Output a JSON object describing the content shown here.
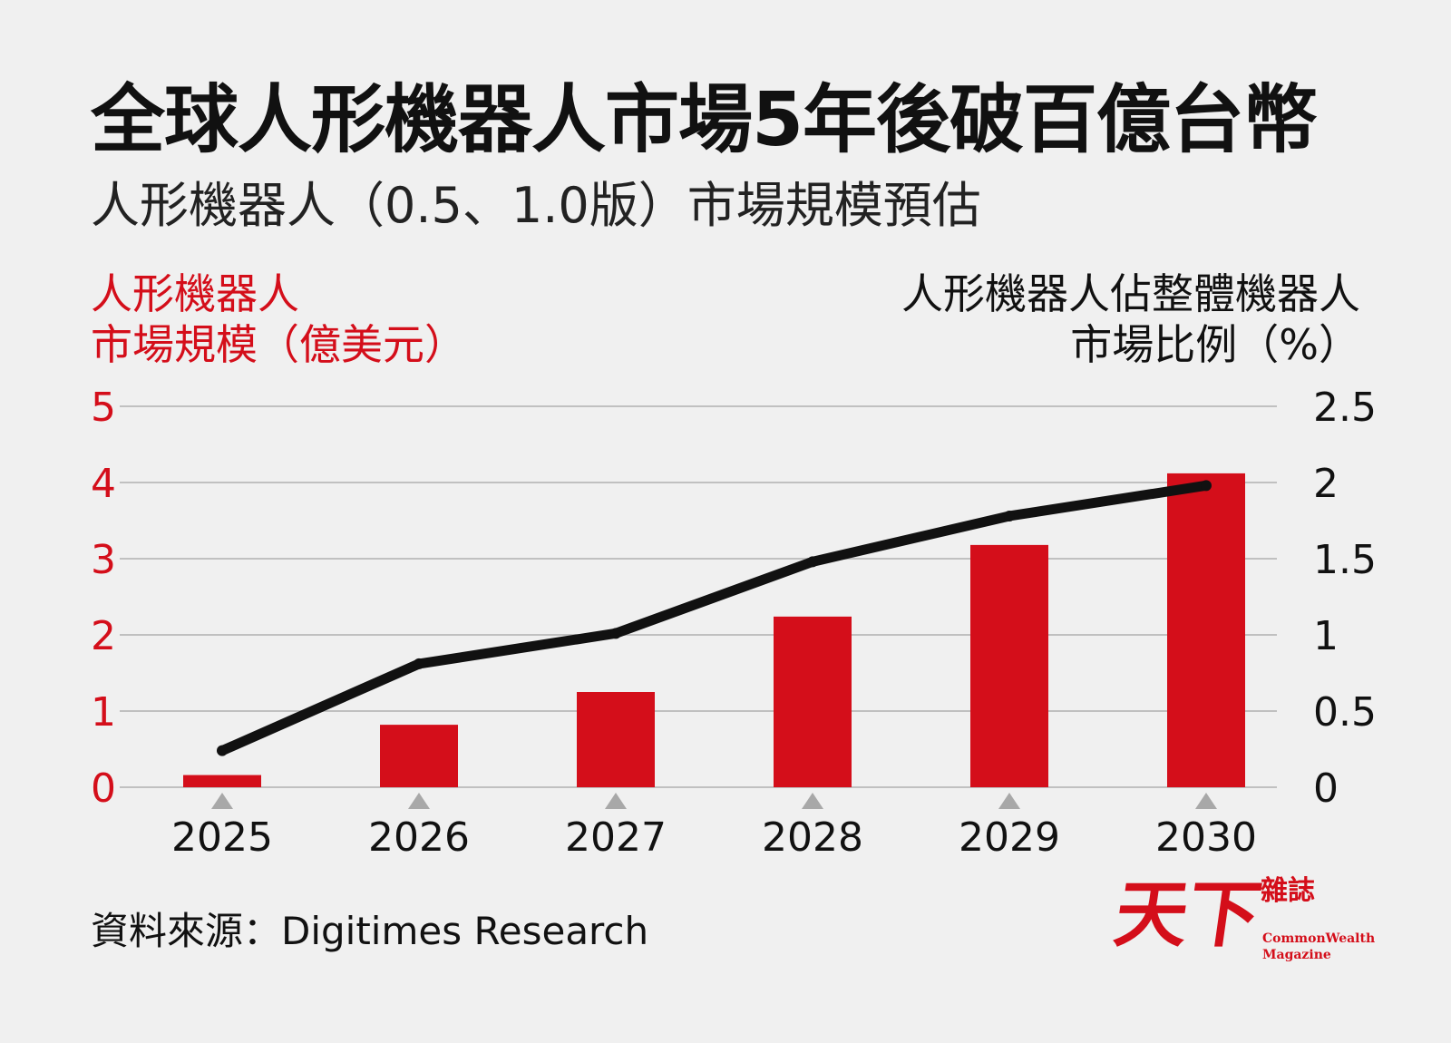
{
  "title": "全球人形機器人市場5年後破百億台幣",
  "subtitle": "人形機器人（0.5、1.0版）市場規模預估",
  "colors": {
    "bar": "#d40e1a",
    "line": "#111111",
    "left_axis": "#d40e1a",
    "grid": "#c0c0c0",
    "marker": "#a8a8a8"
  },
  "chart_data": {
    "type": "bar",
    "categories": [
      "2025",
      "2026",
      "2027",
      "2028",
      "2029",
      "2030"
    ],
    "series": [
      {
        "type": "bar",
        "axis": "left",
        "values": [
          0.16,
          0.82,
          1.25,
          2.24,
          3.18,
          4.12
        ]
      },
      {
        "type": "line",
        "axis": "right",
        "values": [
          0.24,
          0.81,
          1.01,
          1.48,
          1.78,
          1.98
        ]
      }
    ],
    "ylabel_left": [
      "人形機器人",
      "市場規模（億美元）"
    ],
    "ylabel_right": [
      "人形機器人佔整體機器人",
      "市場比例（%）"
    ],
    "ylim_left": [
      0,
      5
    ],
    "ylim_right": [
      0,
      2.5
    ],
    "yticks_left": [
      "0",
      "1",
      "2",
      "3",
      "4",
      "5"
    ],
    "yticks_right": [
      "0",
      "0.5",
      "1",
      "1.5",
      "2",
      "2.5"
    ],
    "grid": true
  },
  "source": "資料來源：Digitimes Research",
  "logo": {
    "main": "天下",
    "sub": "雜誌",
    "en_line1": "CommonWealth",
    "en_line2": "Magazine"
  }
}
